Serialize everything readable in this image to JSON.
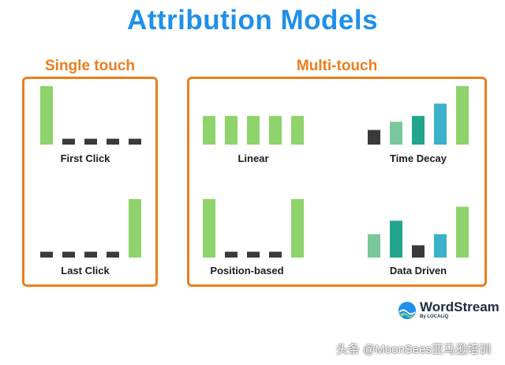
{
  "title": "Attribution Models",
  "colors": {
    "title": "#1f8fea",
    "orange": "#ee7d1c",
    "green": "#8ed36b",
    "dark": "#3a3a3a",
    "teal_light": "#79c79a",
    "teal": "#22a58c",
    "blue_teal": "#3bb0c9",
    "logo_blue": "#1f8fea"
  },
  "sections": {
    "single": "Single touch",
    "multi": "Multi-touch"
  },
  "charts": {
    "first_click": {
      "label": "First Click",
      "values": [
        1.0,
        0.1,
        0.1,
        0.1,
        0.1
      ],
      "colors": [
        "green",
        "dark",
        "dark",
        "dark",
        "dark"
      ],
      "style": "narrow"
    },
    "last_click": {
      "label": "Last Click",
      "values": [
        0.1,
        0.1,
        0.1,
        0.1,
        1.0
      ],
      "colors": [
        "dark",
        "dark",
        "dark",
        "dark",
        "green"
      ],
      "style": "narrow"
    },
    "linear": {
      "label": "Linear",
      "values": [
        0.49,
        0.49,
        0.49,
        0.49,
        0.49
      ],
      "colors": [
        "green",
        "green",
        "green",
        "green",
        "green"
      ],
      "style": "wide"
    },
    "position_based": {
      "label": "Position-based",
      "values": [
        1.0,
        0.1,
        0.1,
        0.1,
        1.0
      ],
      "colors": [
        "green",
        "dark",
        "dark",
        "dark",
        "green"
      ],
      "style": "wide"
    },
    "time_decay": {
      "label": "Time Decay",
      "values": [
        0.25,
        0.39,
        0.49,
        0.7,
        1.0
      ],
      "colors": [
        "dark",
        "teal_light",
        "teal",
        "blue_teal",
        "green"
      ],
      "style": "wide"
    },
    "data_driven": {
      "label": "Data Driven",
      "values": [
        0.4,
        0.63,
        0.21,
        0.4,
        0.87
      ],
      "colors": [
        "teal_light",
        "teal",
        "dark",
        "blue_teal",
        "green"
      ],
      "style": "wide"
    }
  },
  "logo": {
    "name": "WordStream",
    "sub": "By LOCALiQ"
  },
  "watermark": "头条 @MoonSees亚马逊培训"
}
